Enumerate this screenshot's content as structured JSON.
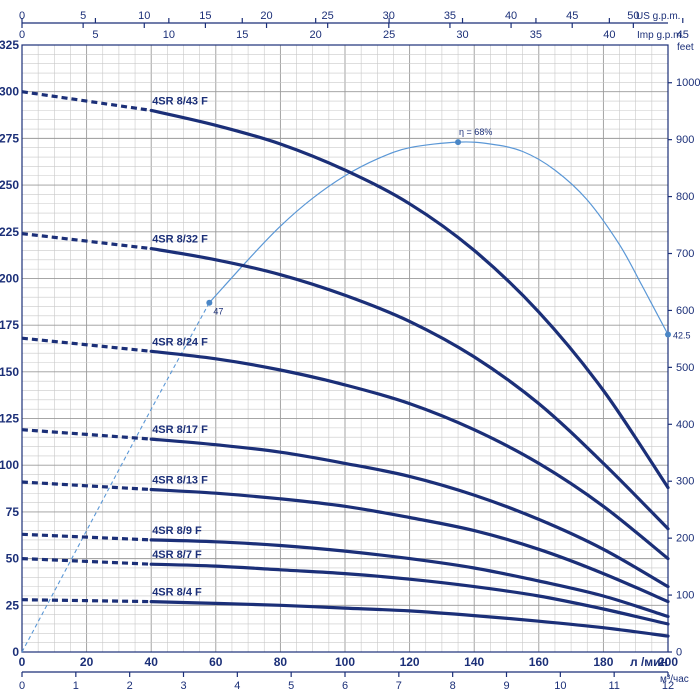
{
  "chart_data": {
    "type": "line",
    "title": "",
    "x_axis": {
      "label": "л /мин",
      "range": [
        0,
        200
      ],
      "ticks": [
        0,
        20,
        40,
        60,
        80,
        100,
        120,
        140,
        160,
        180,
        200
      ]
    },
    "x_axis_m3h": {
      "label": "м³/час",
      "range": [
        0,
        12
      ],
      "ticks": [
        0,
        1,
        2,
        3,
        4,
        5,
        6,
        7,
        8,
        9,
        10,
        11,
        12
      ]
    },
    "x_axis_us_gpm": {
      "label": "US g.p.m.",
      "ticks": [
        0,
        5,
        10,
        15,
        20,
        25,
        30,
        35,
        40,
        45,
        50
      ]
    },
    "x_axis_imp_gpm": {
      "label": "Imp g.p.m.",
      "ticks": [
        0,
        5,
        10,
        15,
        20,
        25,
        30,
        35,
        40,
        45
      ]
    },
    "y_axis": {
      "label": "",
      "range": [
        0,
        325
      ],
      "ticks": [
        0,
        25,
        50,
        75,
        100,
        125,
        150,
        175,
        200,
        225,
        250,
        275,
        300,
        325
      ]
    },
    "y_axis_feet": {
      "label": "feet",
      "ticks": [
        0,
        100,
        200,
        300,
        400,
        500,
        600,
        700,
        800,
        900,
        1000
      ]
    },
    "grid": true,
    "series": [
      {
        "name": "4SR 8/43 F",
        "dashed_until": 40,
        "x": [
          0,
          40,
          60,
          80,
          100,
          120,
          140,
          160,
          180,
          200
        ],
        "y": [
          300,
          290,
          282,
          272,
          258,
          240,
          215,
          182,
          140,
          88
        ]
      },
      {
        "name": "4SR 8/32 F",
        "dashed_until": 40,
        "x": [
          0,
          40,
          60,
          80,
          100,
          120,
          140,
          160,
          180,
          200
        ],
        "y": [
          224,
          216,
          210,
          202,
          191,
          177,
          158,
          133,
          101,
          66
        ]
      },
      {
        "name": "4SR 8/24 F",
        "dashed_until": 40,
        "x": [
          0,
          40,
          60,
          80,
          100,
          120,
          140,
          160,
          180,
          200
        ],
        "y": [
          168,
          161,
          157,
          151,
          143,
          133,
          119,
          101,
          78,
          50
        ]
      },
      {
        "name": "4SR 8/17 F",
        "dashed_until": 40,
        "x": [
          0,
          40,
          60,
          80,
          100,
          120,
          140,
          160,
          180,
          200
        ],
        "y": [
          119,
          114,
          111,
          107,
          101,
          94,
          84,
          71,
          55,
          35
        ]
      },
      {
        "name": "4SR 8/13 F",
        "dashed_until": 40,
        "x": [
          0,
          40,
          60,
          80,
          100,
          120,
          140,
          160,
          180,
          200
        ],
        "y": [
          91,
          87,
          85,
          82,
          78,
          72,
          65,
          55,
          42,
          27
        ]
      },
      {
        "name": "4SR 8/9 F",
        "dashed_until": 40,
        "x": [
          0,
          40,
          60,
          80,
          100,
          120,
          140,
          160,
          180,
          200
        ],
        "y": [
          63,
          60,
          59,
          57,
          54,
          50,
          45,
          38,
          30,
          19
        ]
      },
      {
        "name": "4SR 8/7 F",
        "dashed_until": 40,
        "x": [
          0,
          40,
          60,
          80,
          100,
          120,
          140,
          160,
          180,
          200
        ],
        "y": [
          50,
          47,
          46,
          44,
          42,
          39,
          35,
          30,
          23,
          15
        ]
      },
      {
        "name": "4SR 8/4 F",
        "dashed_until": 40,
        "x": [
          0,
          40,
          60,
          80,
          100,
          120,
          140,
          160,
          180,
          200
        ],
        "y": [
          28,
          27,
          26,
          25,
          23.5,
          22,
          19.5,
          16.5,
          13,
          8.5
        ]
      }
    ],
    "efficiency_curve": {
      "dashed_until": 60,
      "x": [
        0,
        20,
        40,
        58,
        70,
        80,
        90,
        100,
        110,
        120,
        135,
        145,
        155,
        165,
        175,
        185,
        192,
        200
      ],
      "y": [
        0,
        65,
        130,
        187,
        210,
        228,
        243,
        255,
        264,
        270,
        273,
        272,
        268,
        258,
        242,
        218,
        196,
        170
      ],
      "labels": [
        {
          "text": "47",
          "x": 58,
          "y": 187
        },
        {
          "text": "η = 68%",
          "x": 135,
          "y": 273
        },
        {
          "text": "42.5",
          "x": 200,
          "y": 170
        }
      ]
    }
  }
}
